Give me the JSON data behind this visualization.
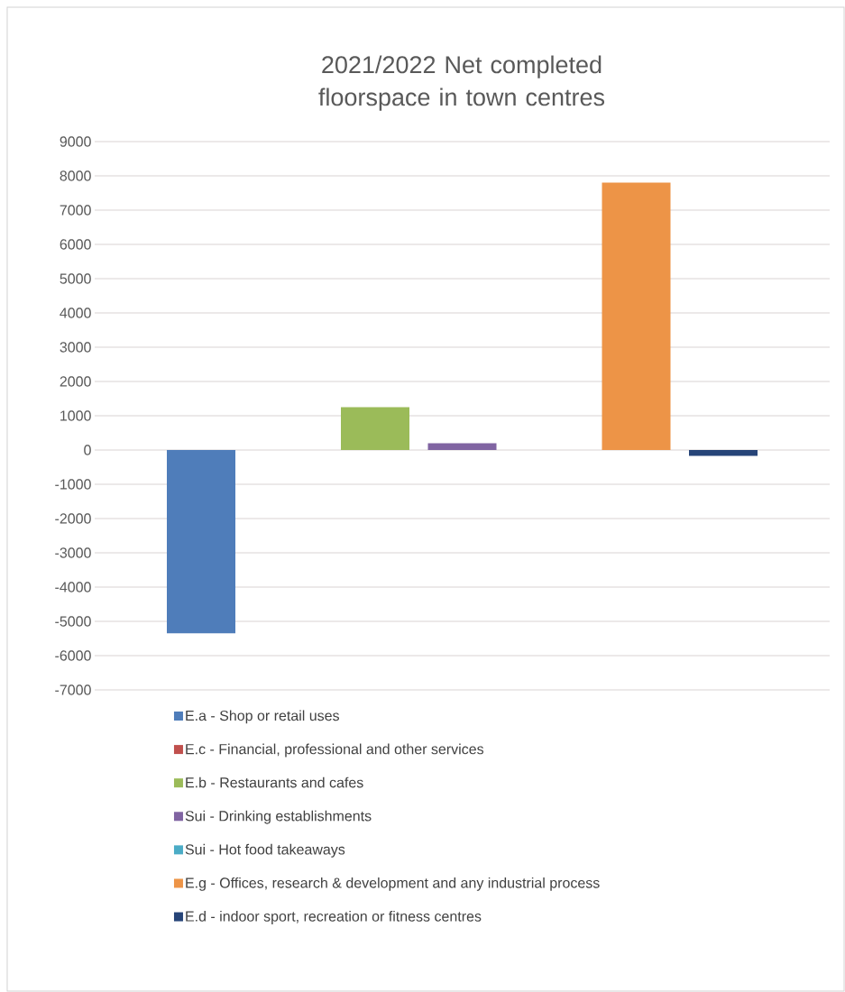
{
  "chart_data": {
    "type": "bar",
    "title": "2021/2022 Net completed floorspace in town centres",
    "categories": [
      null
    ],
    "series": [
      {
        "name": "E.a - Shop or retail uses",
        "color": "#4f7dba",
        "values": [
          -5350
        ]
      },
      {
        "name": "E.c - Financial, professional and other services",
        "color": "#c0504d",
        "values": [
          0
        ]
      },
      {
        "name": "E.b - Restaurants and cafes",
        "color": "#9bbb59",
        "values": [
          1250
        ]
      },
      {
        "name": "Sui - Drinking establishments",
        "color": "#8064a2",
        "values": [
          200
        ]
      },
      {
        "name": "Sui - Hot food takeaways",
        "color": "#4bacc6",
        "values": [
          0
        ]
      },
      {
        "name": "E.g - Offices, research & development and any industrial process",
        "color": "#ed9447",
        "values": [
          7800
        ]
      },
      {
        "name": "E.d - indoor sport, recreation or fitness centres",
        "color": "#264478",
        "values": [
          -170
        ]
      }
    ],
    "ylim": [
      -7000,
      9000
    ],
    "yticks": [
      -7000,
      -6000,
      -5000,
      -4000,
      -3000,
      -2000,
      -1000,
      0,
      1000,
      2000,
      3000,
      4000,
      5000,
      6000,
      7000,
      8000,
      9000
    ],
    "grid": "y",
    "legend": "bottom",
    "tick_labels": "y"
  }
}
